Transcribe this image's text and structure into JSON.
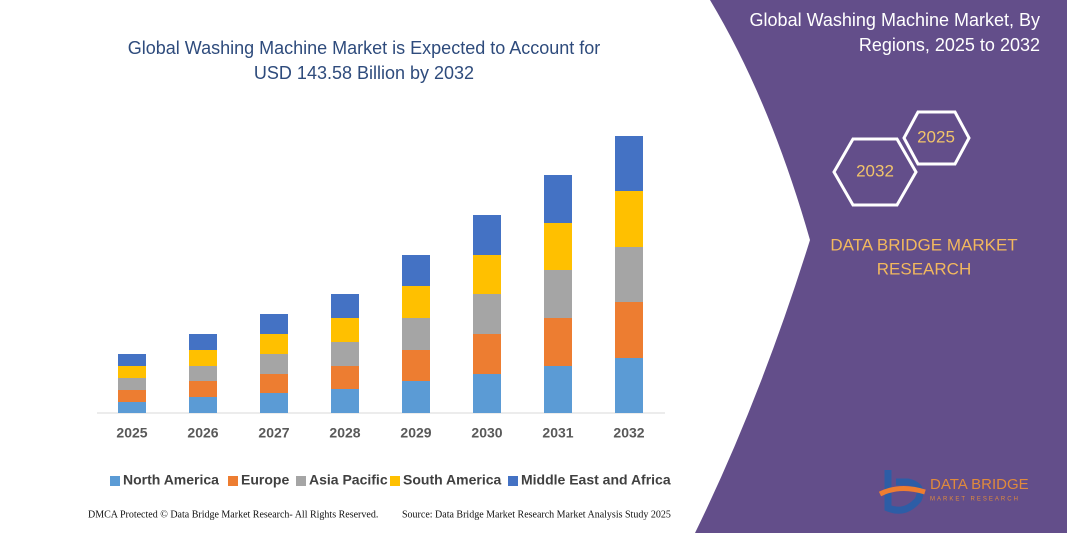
{
  "chart_data": {
    "type": "stacked_bar",
    "title": [
      "Global Washing Machine Market is Expected to Account for",
      "USD 143.58 Billion by 2032"
    ],
    "categories": [
      "2025",
      "2026",
      "2027",
      "2028",
      "2029",
      "2030",
      "2031",
      "2032"
    ],
    "series": [
      {
        "name": "North America",
        "color": "#5b9bd5",
        "values": [
          11,
          16,
          20,
          24,
          32,
          39,
          47,
          55
        ]
      },
      {
        "name": "Europe",
        "color": "#ed7d31",
        "values": [
          12,
          16,
          19,
          23,
          31,
          40,
          48,
          56
        ]
      },
      {
        "name": "Asia Pacific",
        "color": "#a5a5a5",
        "values": [
          12,
          15,
          20,
          24,
          32,
          40,
          48,
          55
        ]
      },
      {
        "name": "South America",
        "color": "#ffc000",
        "values": [
          12,
          16,
          20,
          24,
          32,
          39,
          47,
          56
        ]
      },
      {
        "name": "Middle East and Africa",
        "color": "#4472c4",
        "values": [
          12,
          16,
          20,
          24,
          31,
          40,
          48,
          55
        ]
      }
    ],
    "ylim": [
      0,
      277
    ]
  },
  "panel": {
    "title": [
      "Global Washing Machine Market, By",
      "Regions, 2025 to 2032"
    ],
    "hexagons": [
      "2025",
      "2032"
    ],
    "brand": [
      "DATA BRIDGE MARKET",
      "RESEARCH"
    ]
  },
  "logo": {
    "name": "DATA BRIDGE",
    "tagline": "MARKET RESEARCH"
  },
  "footer": {
    "copyright": "DMCA Protected © Data Bridge Market Research- All Rights Reserved.",
    "source": "Source: Data Bridge Market Research Market Analysis Study 2025"
  }
}
